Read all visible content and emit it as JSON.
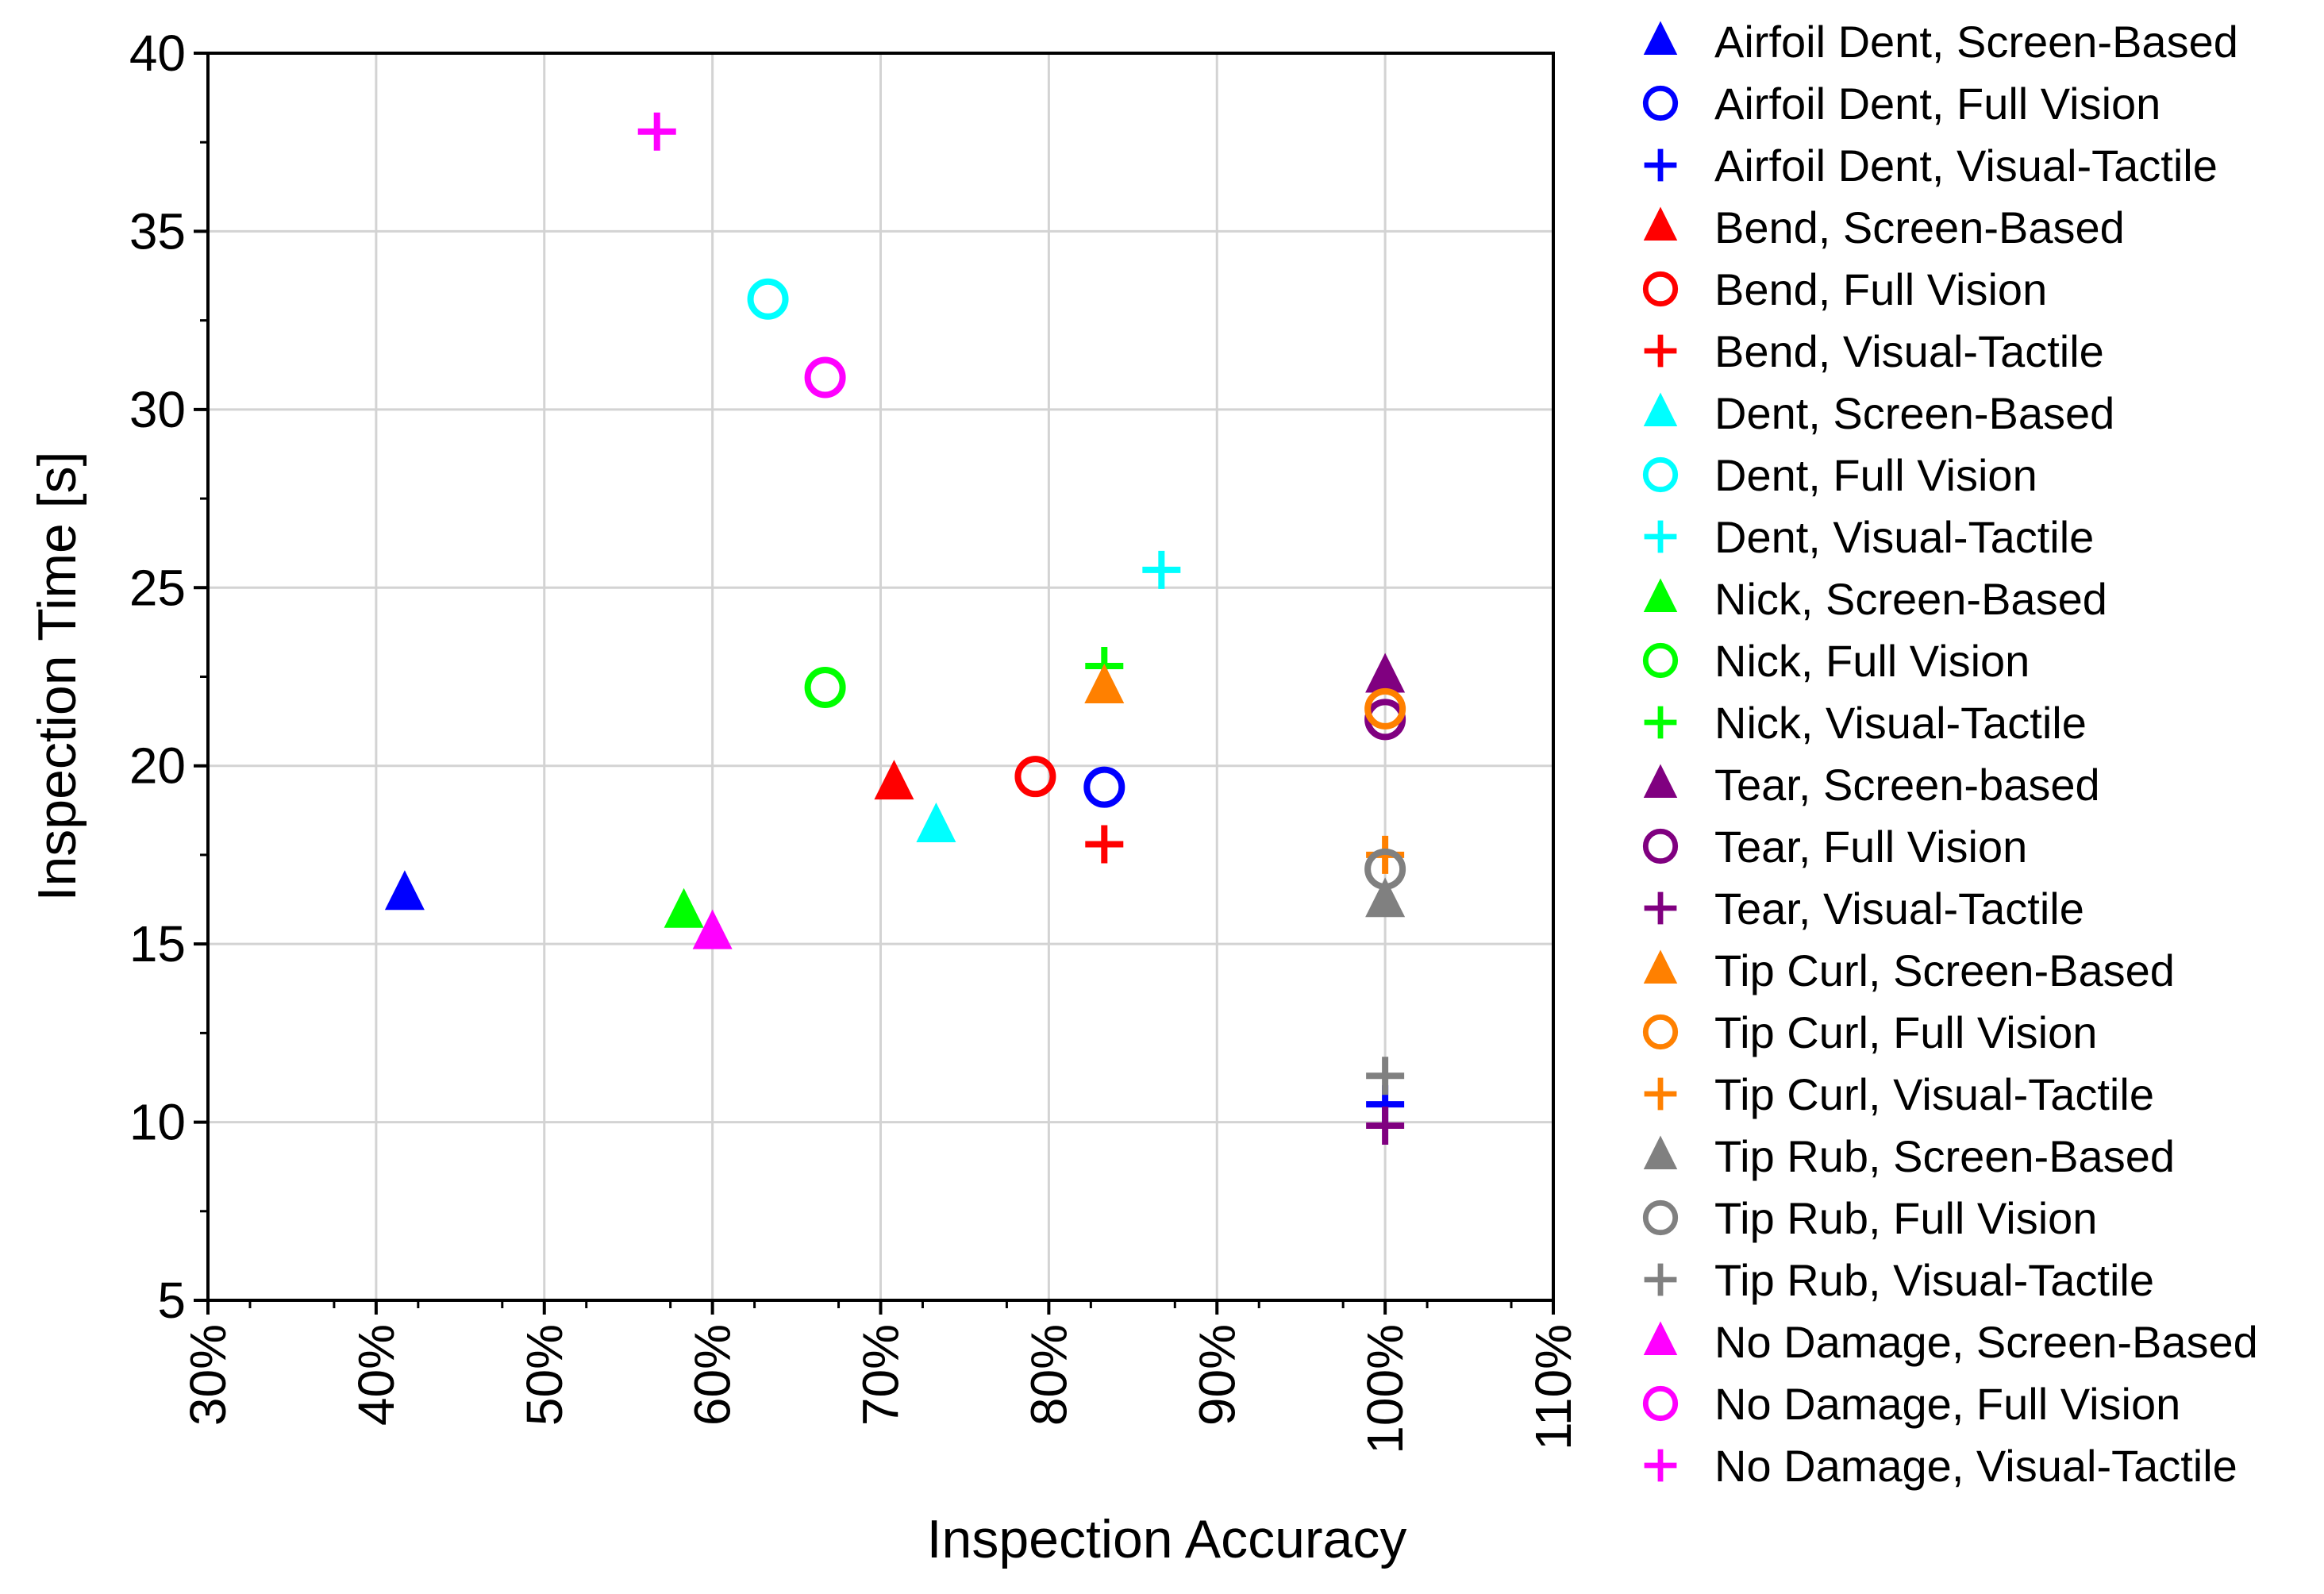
{
  "chart_data": {
    "type": "scatter",
    "title": "",
    "xlabel": "Inspection Accuracy",
    "ylabel": "Inspection Time [s]",
    "xlim": [
      30,
      110
    ],
    "ylim": [
      5,
      40
    ],
    "x_ticks": [
      30,
      40,
      50,
      60,
      70,
      80,
      90,
      100,
      110
    ],
    "x_tick_labels": [
      "30%",
      "40%",
      "50%",
      "60%",
      "70%",
      "80%",
      "90%",
      "100%",
      "110%"
    ],
    "y_ticks": [
      5,
      10,
      15,
      20,
      25,
      30,
      35,
      40
    ],
    "y_tick_labels": [
      "5",
      "10",
      "15",
      "20",
      "25",
      "30",
      "35",
      "40"
    ],
    "grid": true,
    "legend_position": "right",
    "series": [
      {
        "name": "Airfoil Dent, Screen-Based",
        "marker": "triangle",
        "color": "#0000ff",
        "points": [
          [
            41.7,
            16.4
          ]
        ]
      },
      {
        "name": "Airfoil Dent, Full Vision",
        "marker": "circle",
        "color": "#0000ff",
        "points": [
          [
            83.3,
            19.4
          ]
        ]
      },
      {
        "name": "Airfoil Dent, Visual-Tactile",
        "marker": "plus",
        "color": "#0000ff",
        "points": [
          [
            100,
            10.5
          ]
        ]
      },
      {
        "name": "Bend, Screen-Based",
        "marker": "triangle",
        "color": "#ff0000",
        "points": [
          [
            70.8,
            19.5
          ]
        ]
      },
      {
        "name": "Bend, Full Vision",
        "marker": "circle",
        "color": "#ff0000",
        "points": [
          [
            79.2,
            19.7
          ]
        ]
      },
      {
        "name": "Bend, Visual-Tactile",
        "marker": "plus",
        "color": "#ff0000",
        "points": [
          [
            83.3,
            17.8
          ]
        ]
      },
      {
        "name": "Dent, Screen-Based",
        "marker": "triangle",
        "color": "#00ffff",
        "points": [
          [
            73.3,
            18.3
          ]
        ]
      },
      {
        "name": "Dent, Full Vision",
        "marker": "circle",
        "color": "#00ffff",
        "points": [
          [
            63.3,
            33.1
          ]
        ]
      },
      {
        "name": "Dent, Visual-Tactile",
        "marker": "plus",
        "color": "#00ffff",
        "points": [
          [
            86.7,
            25.5
          ]
        ]
      },
      {
        "name": "Nick, Screen-Based",
        "marker": "triangle",
        "color": "#00ff00",
        "points": [
          [
            58.3,
            15.9
          ]
        ]
      },
      {
        "name": "Nick, Full Vision",
        "marker": "circle",
        "color": "#00ff00",
        "points": [
          [
            66.7,
            22.2
          ]
        ]
      },
      {
        "name": "Nick, Visual-Tactile",
        "marker": "plus",
        "color": "#00ff00",
        "points": [
          [
            83.3,
            22.8
          ]
        ]
      },
      {
        "name": "Tear, Screen-based",
        "marker": "triangle",
        "color": "#800080",
        "points": [
          [
            100,
            22.5
          ]
        ]
      },
      {
        "name": "Tear, Full Vision",
        "marker": "circle",
        "color": "#800080",
        "points": [
          [
            100,
            21.3
          ]
        ]
      },
      {
        "name": "Tear, Visual-Tactile",
        "marker": "plus",
        "color": "#800080",
        "points": [
          [
            100,
            9.9
          ]
        ]
      },
      {
        "name": "Tip Curl, Screen-Based",
        "marker": "triangle",
        "color": "#ff8000",
        "points": [
          [
            83.3,
            22.2
          ]
        ]
      },
      {
        "name": "Tip Curl, Full Vision",
        "marker": "circle",
        "color": "#ff8000",
        "points": [
          [
            100,
            21.6
          ]
        ]
      },
      {
        "name": "Tip Curl, Visual-Tactile",
        "marker": "plus",
        "color": "#ff8000",
        "points": [
          [
            100,
            17.5
          ]
        ]
      },
      {
        "name": "Tip Rub, Screen-Based",
        "marker": "triangle",
        "color": "#808080",
        "points": [
          [
            100,
            16.2
          ]
        ]
      },
      {
        "name": "Tip Rub, Full Vision",
        "marker": "circle",
        "color": "#808080",
        "points": [
          [
            100,
            17.1
          ]
        ]
      },
      {
        "name": "Tip Rub, Visual-Tactile",
        "marker": "plus",
        "color": "#808080",
        "points": [
          [
            100,
            11.3
          ]
        ]
      },
      {
        "name": "No Damage, Screen-Based",
        "marker": "triangle",
        "color": "#ff00ff",
        "points": [
          [
            60,
            15.3
          ]
        ]
      },
      {
        "name": "No Damage, Full Vision",
        "marker": "circle",
        "color": "#ff00ff",
        "points": [
          [
            66.7,
            30.9
          ]
        ]
      },
      {
        "name": "No Damage, Visual-Tactile",
        "marker": "plus",
        "color": "#ff00ff",
        "points": [
          [
            56.7,
            37.8
          ]
        ]
      }
    ]
  }
}
